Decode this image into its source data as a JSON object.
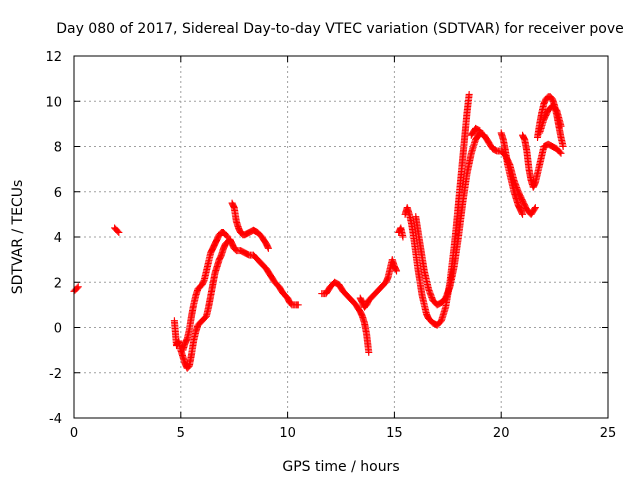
{
  "chart_data": {
    "type": "scatter",
    "title": "Day 080 of 2017, Sidereal Day-to-day VTEC variation (SDTVAR) for receiver pove",
    "xlabel": "GPS time / hours",
    "ylabel": "SDTVAR / TECUs",
    "xlim": [
      0,
      25
    ],
    "ylim": [
      -4,
      12
    ],
    "xticks": [
      "0",
      "5",
      "10",
      "15",
      "20",
      "25"
    ],
    "yticks": [
      "-4",
      "-2",
      "0",
      "2",
      "4",
      "6",
      "8",
      "10",
      "12"
    ],
    "grid": true,
    "marker": "+",
    "marker_color": "#ff0000",
    "series": [
      {
        "name": "SDTVAR",
        "segments": [
          [
            [
              0.0,
              1.6
            ],
            [
              0.1,
              1.7
            ],
            [
              0.2,
              1.8
            ]
          ],
          [
            [
              1.9,
              4.4
            ],
            [
              2.0,
              4.3
            ],
            [
              2.1,
              4.2
            ]
          ],
          [
            [
              4.7,
              0.3
            ],
            [
              4.8,
              -0.8
            ],
            [
              4.9,
              -0.6
            ],
            [
              5.0,
              -1.0
            ],
            [
              5.1,
              -1.3
            ],
            [
              5.2,
              -1.6
            ],
            [
              5.3,
              -1.8
            ],
            [
              5.4,
              -1.7
            ],
            [
              5.5,
              -1.2
            ],
            [
              5.6,
              -0.6
            ],
            [
              5.7,
              -0.2
            ],
            [
              5.8,
              0.1
            ],
            [
              5.9,
              0.2
            ],
            [
              6.0,
              0.3
            ],
            [
              6.1,
              0.4
            ],
            [
              6.2,
              0.5
            ],
            [
              6.3,
              0.9
            ],
            [
              6.4,
              1.4
            ],
            [
              6.5,
              1.9
            ],
            [
              6.6,
              2.4
            ],
            [
              6.7,
              2.7
            ],
            [
              6.8,
              3.0
            ],
            [
              6.9,
              3.2
            ],
            [
              7.0,
              3.5
            ],
            [
              7.1,
              3.7
            ],
            [
              7.2,
              3.8
            ],
            [
              7.3,
              3.9
            ],
            [
              7.4,
              3.7
            ],
            [
              7.5,
              3.5
            ],
            [
              7.6,
              3.4
            ],
            [
              7.8,
              3.4
            ],
            [
              8.0,
              3.3
            ],
            [
              8.2,
              3.2
            ],
            [
              8.4,
              3.2
            ],
            [
              8.6,
              3.0
            ],
            [
              8.8,
              2.8
            ],
            [
              9.0,
              2.6
            ],
            [
              9.2,
              2.3
            ],
            [
              9.4,
              2.0
            ],
            [
              9.6,
              1.8
            ],
            [
              9.8,
              1.5
            ],
            [
              10.0,
              1.3
            ],
            [
              10.1,
              1.1
            ],
            [
              10.2,
              1.0
            ],
            [
              10.4,
              1.0
            ],
            [
              10.5,
              1.0
            ]
          ],
          [
            [
              5.1,
              -1.0
            ],
            [
              5.2,
              -0.7
            ],
            [
              5.3,
              -0.5
            ],
            [
              5.4,
              -0.1
            ],
            [
              5.5,
              0.5
            ],
            [
              5.6,
              1.0
            ],
            [
              5.7,
              1.4
            ],
            [
              5.8,
              1.7
            ],
            [
              5.9,
              1.8
            ],
            [
              6.0,
              1.9
            ],
            [
              6.1,
              2.1
            ],
            [
              6.2,
              2.5
            ],
            [
              6.3,
              2.9
            ],
            [
              6.4,
              3.3
            ],
            [
              6.5,
              3.5
            ],
            [
              6.6,
              3.7
            ],
            [
              6.7,
              3.9
            ],
            [
              6.8,
              4.1
            ],
            [
              6.9,
              4.2
            ],
            [
              7.0,
              4.2
            ],
            [
              7.1,
              4.1
            ],
            [
              7.2,
              4.0
            ]
          ],
          [
            [
              7.4,
              5.5
            ],
            [
              7.5,
              5.3
            ],
            [
              7.6,
              4.7
            ],
            [
              7.7,
              4.4
            ],
            [
              7.8,
              4.2
            ],
            [
              7.9,
              4.1
            ],
            [
              8.0,
              4.1
            ],
            [
              8.2,
              4.2
            ],
            [
              8.4,
              4.3
            ],
            [
              8.6,
              4.2
            ],
            [
              8.8,
              4.0
            ],
            [
              9.0,
              3.7
            ],
            [
              9.1,
              3.5
            ]
          ],
          [
            [
              11.6,
              1.5
            ],
            [
              11.8,
              1.5
            ],
            [
              12.0,
              1.8
            ],
            [
              12.2,
              2.0
            ],
            [
              12.4,
              1.9
            ],
            [
              12.6,
              1.6
            ],
            [
              12.8,
              1.4
            ],
            [
              13.0,
              1.2
            ],
            [
              13.2,
              1.0
            ],
            [
              13.4,
              0.7
            ],
            [
              13.5,
              0.5
            ],
            [
              13.6,
              0.2
            ],
            [
              13.7,
              -0.3
            ],
            [
              13.8,
              -1.1
            ]
          ],
          [
            [
              13.4,
              1.3
            ],
            [
              13.5,
              1.1
            ],
            [
              13.6,
              0.9
            ],
            [
              13.7,
              1.0
            ],
            [
              13.8,
              1.2
            ],
            [
              14.0,
              1.4
            ],
            [
              14.2,
              1.6
            ],
            [
              14.4,
              1.8
            ],
            [
              14.6,
              2.0
            ],
            [
              14.7,
              2.2
            ],
            [
              14.8,
              2.6
            ],
            [
              14.9,
              3.0
            ],
            [
              15.0,
              2.7
            ],
            [
              15.1,
              2.5
            ]
          ],
          [
            [
              15.2,
              4.2
            ],
            [
              15.3,
              4.4
            ],
            [
              15.4,
              4.0
            ]
          ],
          [
            [
              15.5,
              5.0
            ],
            [
              15.6,
              5.3
            ],
            [
              15.7,
              5.0
            ],
            [
              15.8,
              4.6
            ],
            [
              15.9,
              4.0
            ],
            [
              16.0,
              3.3
            ],
            [
              16.1,
              2.6
            ],
            [
              16.2,
              2.0
            ],
            [
              16.3,
              1.4
            ],
            [
              16.4,
              1.0
            ],
            [
              16.5,
              0.6
            ],
            [
              16.6,
              0.4
            ],
            [
              16.8,
              0.2
            ],
            [
              17.0,
              0.1
            ],
            [
              17.2,
              0.3
            ],
            [
              17.4,
              0.9
            ],
            [
              17.6,
              2.0
            ],
            [
              17.8,
              3.6
            ],
            [
              17.9,
              4.5
            ],
            [
              18.0,
              5.5
            ],
            [
              18.1,
              6.5
            ],
            [
              18.2,
              7.5
            ],
            [
              18.3,
              8.5
            ],
            [
              18.4,
              9.5
            ],
            [
              18.5,
              10.3
            ]
          ],
          [
            [
              16.0,
              4.9
            ],
            [
              16.2,
              3.7
            ],
            [
              16.4,
              2.5
            ],
            [
              16.6,
              1.7
            ],
            [
              16.8,
              1.2
            ],
            [
              17.0,
              1.0
            ],
            [
              17.2,
              1.1
            ],
            [
              17.4,
              1.3
            ],
            [
              17.6,
              1.8
            ],
            [
              17.8,
              2.7
            ],
            [
              18.0,
              4.0
            ],
            [
              18.2,
              5.5
            ],
            [
              18.4,
              6.8
            ],
            [
              18.6,
              7.7
            ],
            [
              18.8,
              8.3
            ],
            [
              19.0,
              8.6
            ],
            [
              19.2,
              8.5
            ],
            [
              19.4,
              8.2
            ],
            [
              19.6,
              7.9
            ],
            [
              19.8,
              7.8
            ],
            [
              20.0,
              7.8
            ],
            [
              20.2,
              7.6
            ],
            [
              20.4,
              7.2
            ],
            [
              20.6,
              6.5
            ],
            [
              20.8,
              6.0
            ],
            [
              21.0,
              5.6
            ],
            [
              21.2,
              5.2
            ],
            [
              21.4,
              5.0
            ],
            [
              21.6,
              5.3
            ]
          ],
          [
            [
              18.6,
              8.5
            ],
            [
              18.8,
              8.8
            ],
            [
              19.0,
              8.7
            ]
          ],
          [
            [
              20.0,
              8.6
            ],
            [
              20.1,
              8.3
            ],
            [
              20.2,
              7.8
            ],
            [
              20.3,
              7.2
            ],
            [
              20.4,
              6.8
            ],
            [
              20.5,
              6.4
            ],
            [
              20.6,
              6.0
            ],
            [
              20.7,
              5.7
            ],
            [
              20.8,
              5.4
            ],
            [
              20.9,
              5.2
            ],
            [
              21.0,
              5.0
            ]
          ],
          [
            [
              21.0,
              8.5
            ],
            [
              21.1,
              8.3
            ],
            [
              21.2,
              7.8
            ],
            [
              21.3,
              7.0
            ],
            [
              21.4,
              6.5
            ],
            [
              21.5,
              6.2
            ],
            [
              21.6,
              6.4
            ],
            [
              21.7,
              6.8
            ],
            [
              21.8,
              7.2
            ],
            [
              21.9,
              7.6
            ],
            [
              22.0,
              8.0
            ],
            [
              22.2,
              8.1
            ],
            [
              22.4,
              8.0
            ],
            [
              22.6,
              7.9
            ],
            [
              22.8,
              7.7
            ]
          ],
          [
            [
              21.7,
              8.4
            ],
            [
              21.8,
              9.0
            ],
            [
              21.9,
              9.5
            ],
            [
              22.0,
              9.9
            ],
            [
              22.1,
              10.1
            ],
            [
              22.2,
              10.2
            ],
            [
              22.3,
              10.2
            ],
            [
              22.4,
              10.1
            ],
            [
              22.5,
              9.8
            ],
            [
              22.6,
              9.4
            ],
            [
              22.7,
              8.9
            ],
            [
              22.8,
              8.4
            ],
            [
              22.9,
              8.0
            ]
          ],
          [
            [
              21.8,
              8.6
            ],
            [
              22.0,
              9.2
            ],
            [
              22.2,
              9.6
            ],
            [
              22.4,
              9.8
            ],
            [
              22.6,
              9.6
            ],
            [
              22.8,
              8.9
            ]
          ]
        ]
      }
    ]
  }
}
